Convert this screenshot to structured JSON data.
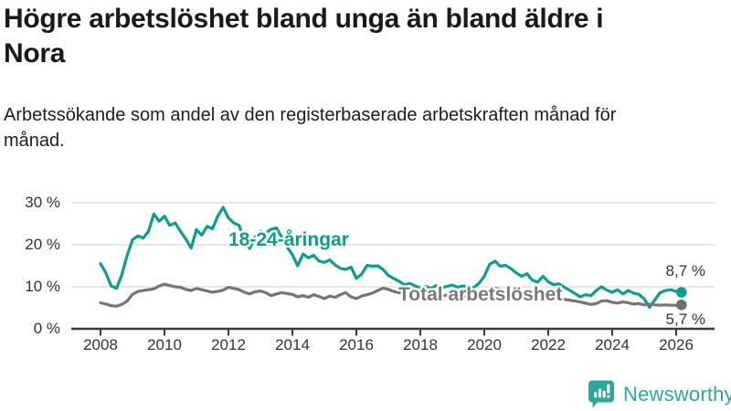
{
  "header": {
    "title_line1": "Högre arbetslöshet bland unga än bland äldre i",
    "title_line2": "Nora",
    "subtitle": "Arbetssökande som andel av den registerbaserade arbetskraften månad för månad."
  },
  "chart_data": {
    "type": "line",
    "title": "Högre arbetslöshet bland unga än bland äldre i Nora",
    "subtitle": "Arbetssökande som andel av den registerbaserade arbetskraften månad för månad.",
    "unit": "%",
    "grid": "horizontal-only",
    "x_start_year": 2008,
    "x_step_years": 0.16667,
    "x_ticks": [
      2008,
      2010,
      2012,
      2014,
      2016,
      2018,
      2020,
      2022,
      2024,
      2026
    ],
    "x_tick_labels": [
      "2008",
      "2010",
      "2012",
      "2014",
      "2016",
      "2018",
      "2020",
      "2022",
      "2024",
      "2026"
    ],
    "y_ticks": [
      0,
      10,
      20,
      30
    ],
    "y_tick_labels": [
      "0 %",
      "10 %",
      "20 %",
      "30 %"
    ],
    "ylim": [
      0,
      32
    ],
    "colors": {
      "youth_line": "#0d9d8e",
      "total_line": "#757575",
      "gridline": "#e0e0e0",
      "axis": "#3a3a3a",
      "tick_text": "#333333"
    },
    "series": [
      {
        "name": "18-24-åringar",
        "color": "#0d9d8e",
        "end_label": "8,7 %",
        "end_value": 8.7,
        "values": [
          15.5,
          13.3,
          10.2,
          9.6,
          12.8,
          17.5,
          21.2,
          22.1,
          21.6,
          23.2,
          27.3,
          25.6,
          26.8,
          24.6,
          25.2,
          23.2,
          21.4,
          19.2,
          23.6,
          22.3,
          24.4,
          23.8,
          26.8,
          28.9,
          26.4,
          25.2,
          24.6,
          20.9,
          19.1,
          21.9,
          23.2,
          22.8,
          23.7,
          24.0,
          21.8,
          19.5,
          17.6,
          15.0,
          17.8,
          16.9,
          17.5,
          16.1,
          15.8,
          16.4,
          15.2,
          14.4,
          14.1,
          14.7,
          12.0,
          13.0,
          15.1,
          14.9,
          15.0,
          14.1,
          12.7,
          12.0,
          11.3,
          10.5,
          10.8,
          10.2,
          9.7,
          10.1,
          9.6,
          10.3,
          9.8,
          10.1,
          10.4,
          9.9,
          10.2,
          9.9,
          9.8,
          10.8,
          12.5,
          15.3,
          16.1,
          14.9,
          15.1,
          14.3,
          13.3,
          12.5,
          13.1,
          11.6,
          11.1,
          12.5,
          11.2,
          10.5,
          10.7,
          9.9,
          9.2,
          8.4,
          7.6,
          8.1,
          7.9,
          9.1,
          10.0,
          9.2,
          8.7,
          9.3,
          8.3,
          9.1,
          8.5,
          8.2,
          7.1,
          5.1,
          6.9,
          8.6,
          9.1,
          9.3,
          8.9,
          8.7
        ]
      },
      {
        "name": "Total arbetslöshet",
        "color": "#757575",
        "end_label": "5,7 %",
        "end_value": 5.7,
        "values": [
          6.2,
          5.9,
          5.5,
          5.4,
          5.8,
          6.6,
          8.2,
          8.9,
          9.1,
          9.3,
          9.5,
          10.2,
          10.6,
          10.3,
          10.0,
          9.9,
          9.4,
          9.1,
          9.6,
          9.3,
          9.0,
          8.7,
          8.9,
          9.2,
          9.9,
          9.6,
          9.3,
          8.7,
          8.3,
          8.8,
          9.0,
          8.6,
          7.9,
          8.3,
          8.6,
          8.4,
          8.2,
          7.6,
          7.9,
          7.5,
          8.1,
          7.7,
          7.2,
          7.8,
          7.5,
          8.1,
          8.6,
          7.6,
          7.2,
          7.8,
          8.1,
          8.5,
          9.1,
          9.7,
          9.4,
          8.9,
          8.6,
          8.5,
          8.3,
          8.2,
          8.1,
          8.2,
          8.0,
          8.1,
          7.9,
          8.0,
          8.1,
          7.9,
          7.8,
          7.7,
          7.9,
          8.1,
          8.5,
          9.3,
          9.6,
          9.4,
          9.2,
          9.0,
          8.8,
          8.5,
          8.3,
          8.1,
          7.9,
          7.8,
          7.6,
          7.4,
          7.2,
          7.0,
          6.8,
          6.6,
          6.4,
          6.1,
          5.8,
          6.0,
          6.6,
          6.7,
          6.3,
          6.1,
          6.4,
          6.2,
          5.9,
          6.0,
          5.7,
          5.9,
          5.7,
          5.6,
          5.7,
          5.6,
          5.6,
          5.7
        ]
      }
    ]
  },
  "footer": {
    "brand": "Newsworthy",
    "brand_color": "#2fa69c",
    "logo_icon": "bar-chart-speech-bubble"
  }
}
